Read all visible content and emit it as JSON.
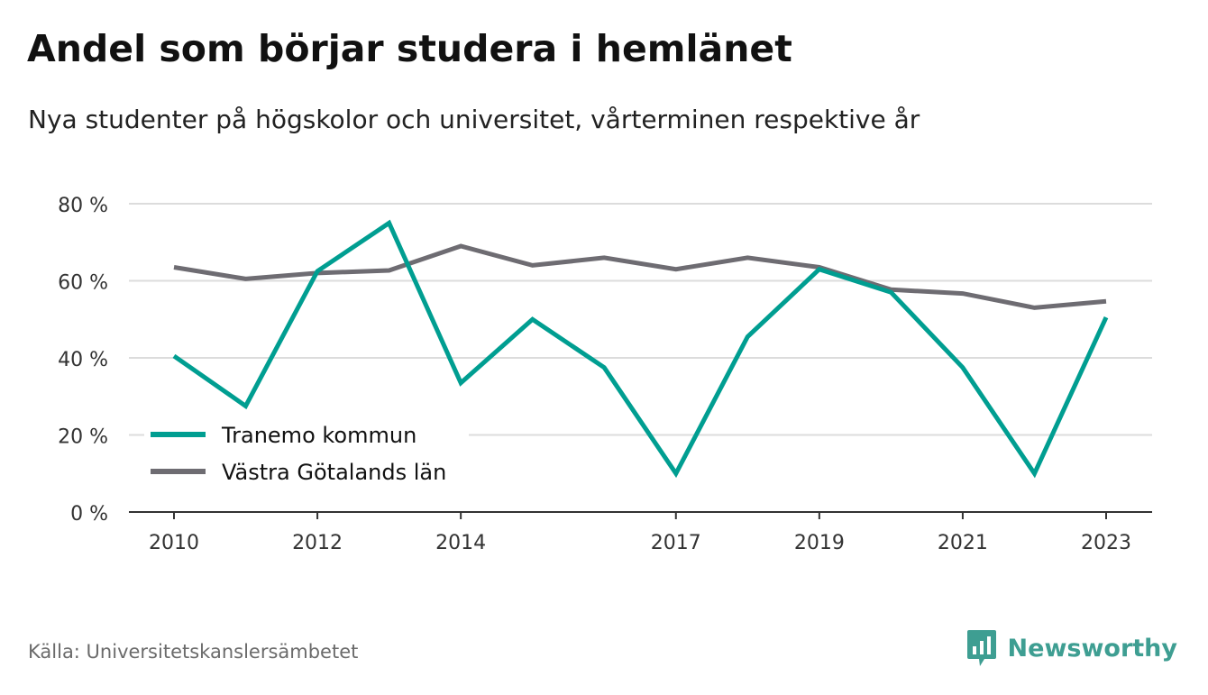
{
  "title": "Andel som börjar studera i hemlänet",
  "subtitle": "Nya studenter på högskolor och universitet, vårterminen respektive år",
  "source": "Källa: Universitetskanslersämbetet",
  "brand": "Newsworthy",
  "colors": {
    "tranemo": "#009e91",
    "vastra": "#6e6c72",
    "grid": "#dcdcdc",
    "axis": "#333333",
    "brand": "#3e9e92"
  },
  "chart_data": {
    "type": "line",
    "x": [
      2010,
      2011,
      2012,
      2013,
      2014,
      2015,
      2016,
      2017,
      2018,
      2019,
      2020,
      2021,
      2022,
      2023
    ],
    "x_tick_labels": [
      "2010",
      "2012",
      "2014",
      "2017",
      "2019",
      "2021",
      "2023"
    ],
    "y_tick_labels": [
      "0 %",
      "20 %",
      "40 %",
      "60 %",
      "80 %"
    ],
    "y_ticks": [
      0,
      20,
      40,
      60,
      80
    ],
    "ylim": [
      0,
      80
    ],
    "grid": true,
    "legend_position": "bottom-left",
    "series": [
      {
        "name": "Tranemo kommun",
        "color": "#009e91",
        "values": [
          40.5,
          27.5,
          62.5,
          75,
          33.5,
          50,
          37.5,
          10,
          45.5,
          63,
          57,
          37.5,
          10,
          50.5
        ]
      },
      {
        "name": "Västra Götalands län",
        "color": "#6e6c72",
        "values": [
          63.5,
          60.5,
          62,
          62.7,
          69,
          64,
          66,
          63,
          66,
          63.5,
          57.7,
          56.7,
          53,
          54.7
        ]
      }
    ]
  }
}
